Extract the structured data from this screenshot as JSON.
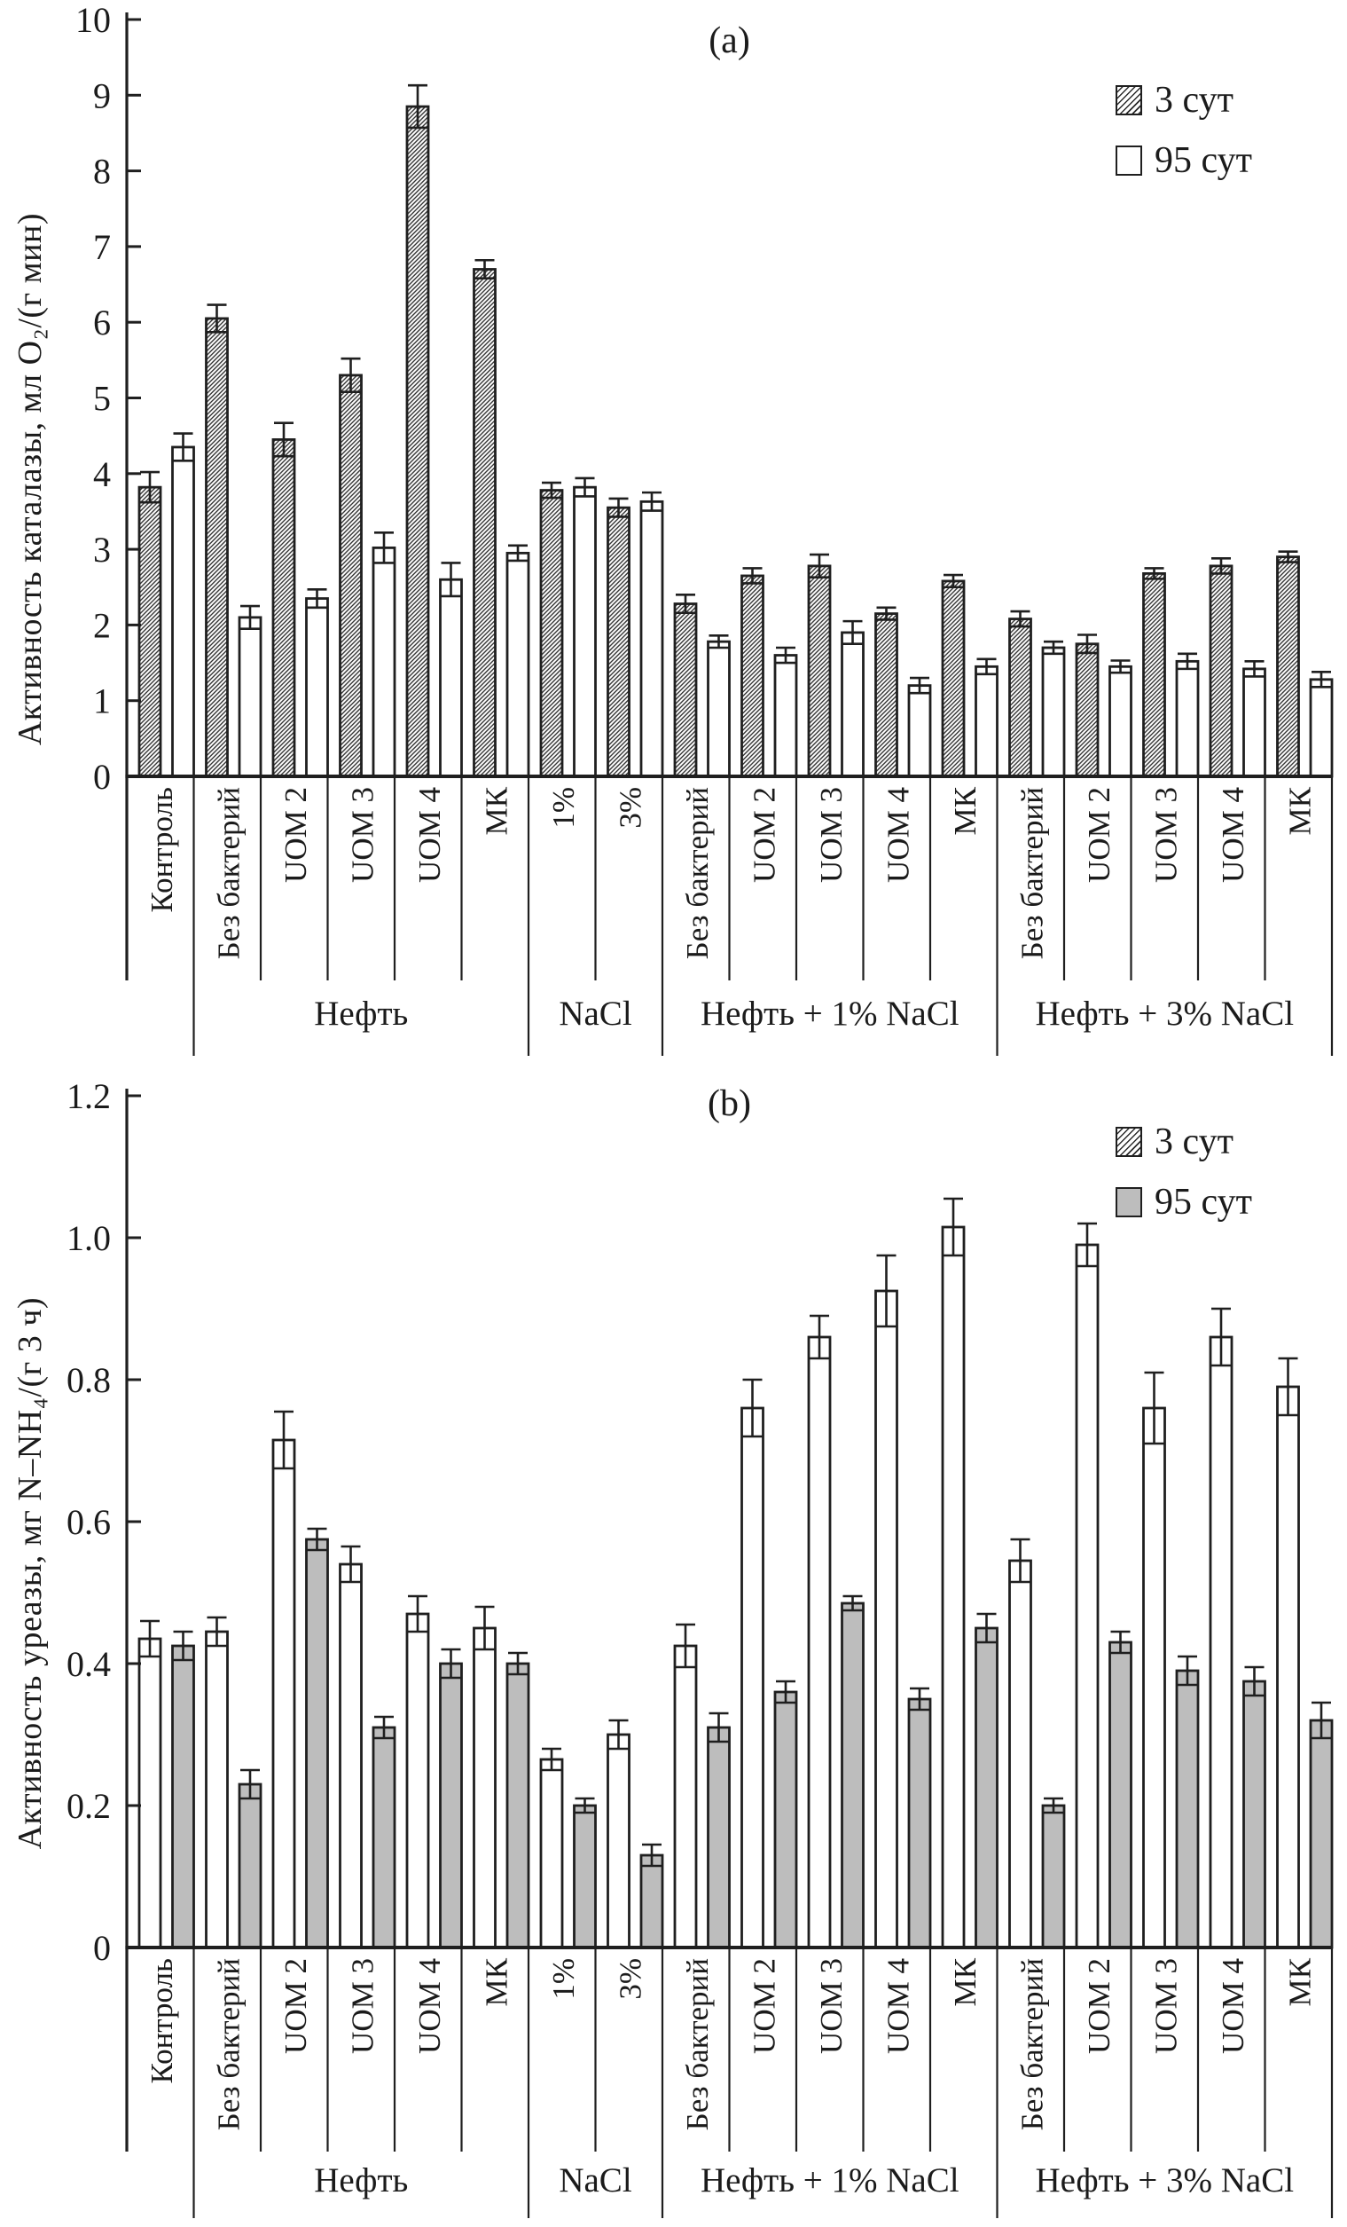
{
  "colors": {
    "ink": "#1f1f1f",
    "gray_fill": "#bdbdbd",
    "white_fill": "#ffffff",
    "background": "#ffffff"
  },
  "chart_data": [
    {
      "type": "bar",
      "title": "(a)",
      "ylabel": "Активность каталазы, мл О₂/(г мин)",
      "xlabel": "",
      "ylim": [
        0,
        10
      ],
      "yticks": [
        "0",
        "1",
        "2",
        "3",
        "4",
        "5",
        "6",
        "7",
        "8",
        "9",
        "10"
      ],
      "grid": false,
      "legend_position": "top-right",
      "categories": [
        "Контроль",
        "Без бактерий",
        "UOM 2",
        "UOM 3",
        "UOM 4",
        "МК",
        "1%",
        "3%",
        "Без бактерий",
        "UOM 2",
        "UOM 3",
        "UOM 4",
        "МК",
        "Без бактерий",
        "UOM 2",
        "UOM 3",
        "UOM 4",
        "МК"
      ],
      "groups": [
        {
          "label": "",
          "span": [
            0,
            1
          ]
        },
        {
          "label": "Нефть",
          "span": [
            1,
            6
          ]
        },
        {
          "label": "NaCl",
          "span": [
            6,
            8
          ]
        },
        {
          "label": "Нефть + 1% NaCl",
          "span": [
            8,
            13
          ]
        },
        {
          "label": "Нефть + 3% NaCl",
          "span": [
            13,
            18
          ]
        }
      ],
      "series": [
        {
          "name": "3 сут",
          "fill": "hatch",
          "values": [
            3.82,
            6.05,
            4.45,
            5.3,
            8.85,
            6.7,
            3.78,
            3.55,
            2.28,
            2.65,
            2.78,
            2.15,
            2.58,
            2.08,
            1.75,
            2.68,
            2.78,
            2.9
          ],
          "errors": [
            0.2,
            0.18,
            0.22,
            0.22,
            0.28,
            0.12,
            0.1,
            0.12,
            0.12,
            0.1,
            0.15,
            0.08,
            0.08,
            0.1,
            0.12,
            0.07,
            0.1,
            0.07
          ]
        },
        {
          "name": "95 сут",
          "fill": "white",
          "values": [
            4.35,
            2.1,
            2.35,
            3.02,
            2.6,
            2.95,
            3.82,
            3.63,
            1.78,
            1.6,
            1.9,
            1.2,
            1.45,
            1.7,
            1.45,
            1.52,
            1.42,
            1.28
          ],
          "errors": [
            0.18,
            0.15,
            0.12,
            0.2,
            0.22,
            0.1,
            0.12,
            0.12,
            0.08,
            0.1,
            0.15,
            0.1,
            0.1,
            0.08,
            0.08,
            0.1,
            0.1,
            0.1
          ]
        }
      ]
    },
    {
      "type": "bar",
      "title": "(b)",
      "ylabel": "Активность уреазы, мг N–NH₄/(г 3 ч)",
      "xlabel": "",
      "ylim": [
        0,
        1.2
      ],
      "yticks": [
        "0",
        "0.2",
        "0.4",
        "0.6",
        "0.8",
        "1.0",
        "1.2"
      ],
      "grid": false,
      "legend_position": "top-right",
      "categories": [
        "Контроль",
        "Без бактерий",
        "UOM 2",
        "UOM 3",
        "UOM 4",
        "МК",
        "1%",
        "3%",
        "Без бактерий",
        "UOM 2",
        "UOM 3",
        "UOM 4",
        "МК",
        "Без бактерий",
        "UOM 2",
        "UOM 3",
        "UOM 4",
        "МК"
      ],
      "groups": [
        {
          "label": "",
          "span": [
            0,
            1
          ]
        },
        {
          "label": "Нефть",
          "span": [
            1,
            6
          ]
        },
        {
          "label": "NaCl",
          "span": [
            6,
            8
          ]
        },
        {
          "label": "Нефть + 1% NaCl",
          "span": [
            8,
            13
          ]
        },
        {
          "label": "Нефть + 3% NaCl",
          "span": [
            13,
            18
          ]
        }
      ],
      "series": [
        {
          "name": "3 сут",
          "fill": "white",
          "legend_swatch": "hatch",
          "values": [
            0.435,
            0.445,
            0.715,
            0.54,
            0.47,
            0.45,
            0.265,
            0.3,
            0.425,
            0.76,
            0.86,
            0.925,
            1.015,
            0.545,
            0.99,
            0.76,
            0.86,
            0.79
          ],
          "errors": [
            0.025,
            0.02,
            0.04,
            0.025,
            0.025,
            0.03,
            0.015,
            0.02,
            0.03,
            0.04,
            0.03,
            0.05,
            0.04,
            0.03,
            0.03,
            0.05,
            0.04,
            0.04
          ]
        },
        {
          "name": "95 сут",
          "fill": "gray",
          "legend_swatch": "gray",
          "values": [
            0.425,
            0.23,
            0.575,
            0.31,
            0.4,
            0.4,
            0.2,
            0.13,
            0.31,
            0.36,
            0.485,
            0.35,
            0.45,
            0.2,
            0.43,
            0.39,
            0.375,
            0.32
          ],
          "errors": [
            0.02,
            0.02,
            0.015,
            0.015,
            0.02,
            0.015,
            0.01,
            0.015,
            0.02,
            0.015,
            0.01,
            0.015,
            0.02,
            0.01,
            0.015,
            0.02,
            0.02,
            0.025
          ]
        }
      ]
    }
  ]
}
